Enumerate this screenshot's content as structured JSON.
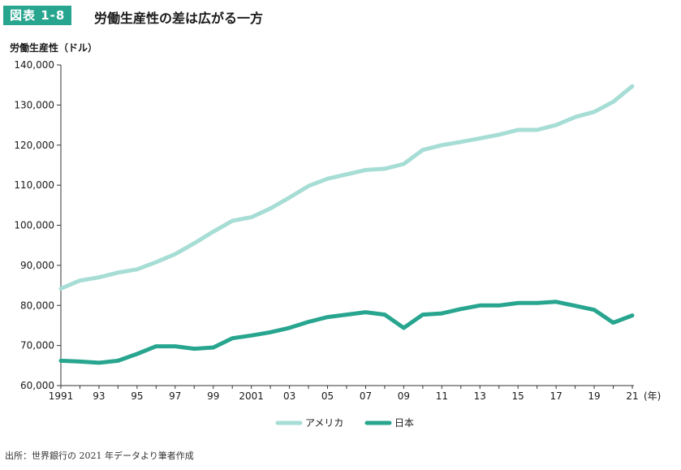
{
  "figure_label": "図表 1-8",
  "title": "労働生産性の差は広がる一方",
  "ylabel": "労働生産性（ドル）",
  "xlabel_unit": "(年)",
  "source": "出所：世界銀行の 2021 年データより筆者作成",
  "colors": {
    "usa": "#a6ddd5",
    "japan": "#27a58f",
    "badge": "#27a58f"
  },
  "chart_data": {
    "type": "line",
    "x": [
      1991,
      1992,
      1993,
      1994,
      1995,
      1996,
      1997,
      1998,
      1999,
      2000,
      2001,
      2002,
      2003,
      2004,
      2005,
      2006,
      2007,
      2008,
      2009,
      2010,
      2011,
      2012,
      2013,
      2014,
      2015,
      2016,
      2017,
      2018,
      2019,
      2020,
      2021
    ],
    "xtick_values": [
      1991,
      1993,
      1995,
      1997,
      1999,
      2001,
      2003,
      2005,
      2007,
      2009,
      2011,
      2013,
      2015,
      2017,
      2019,
      2021
    ],
    "xtick_labels": [
      "1991",
      "93",
      "95",
      "97",
      "99",
      "2001",
      "03",
      "05",
      "07",
      "09",
      "11",
      "13",
      "15",
      "17",
      "19",
      "21"
    ],
    "ylim": [
      60000,
      140000
    ],
    "yticks": [
      60000,
      70000,
      80000,
      90000,
      100000,
      110000,
      120000,
      130000,
      140000
    ],
    "ytick_labels": [
      "60,000",
      "70,000",
      "80,000",
      "90,000",
      "100,000",
      "110,000",
      "120,000",
      "130,000",
      "140,000"
    ],
    "series": [
      {
        "name": "アメリカ",
        "values": [
          84200,
          86200,
          87000,
          88200,
          89000,
          90800,
          92800,
          95500,
          98400,
          101100,
          102000,
          104200,
          106900,
          109800,
          111600,
          112700,
          113800,
          114100,
          115300,
          118800,
          120000,
          120800,
          121700,
          122600,
          123800,
          123800,
          125000,
          127000,
          128300,
          130800,
          134700
        ]
      },
      {
        "name": "日本",
        "values": [
          66200,
          66000,
          65700,
          66200,
          67900,
          69800,
          69800,
          69200,
          69500,
          71800,
          72500,
          73300,
          74400,
          75900,
          77100,
          77700,
          78300,
          77700,
          74400,
          77700,
          78000,
          79100,
          80000,
          80000,
          80600,
          80600,
          80900,
          79900,
          78900,
          75700,
          77500
        ]
      }
    ],
    "legend_position": "bottom-center",
    "grid": false
  }
}
